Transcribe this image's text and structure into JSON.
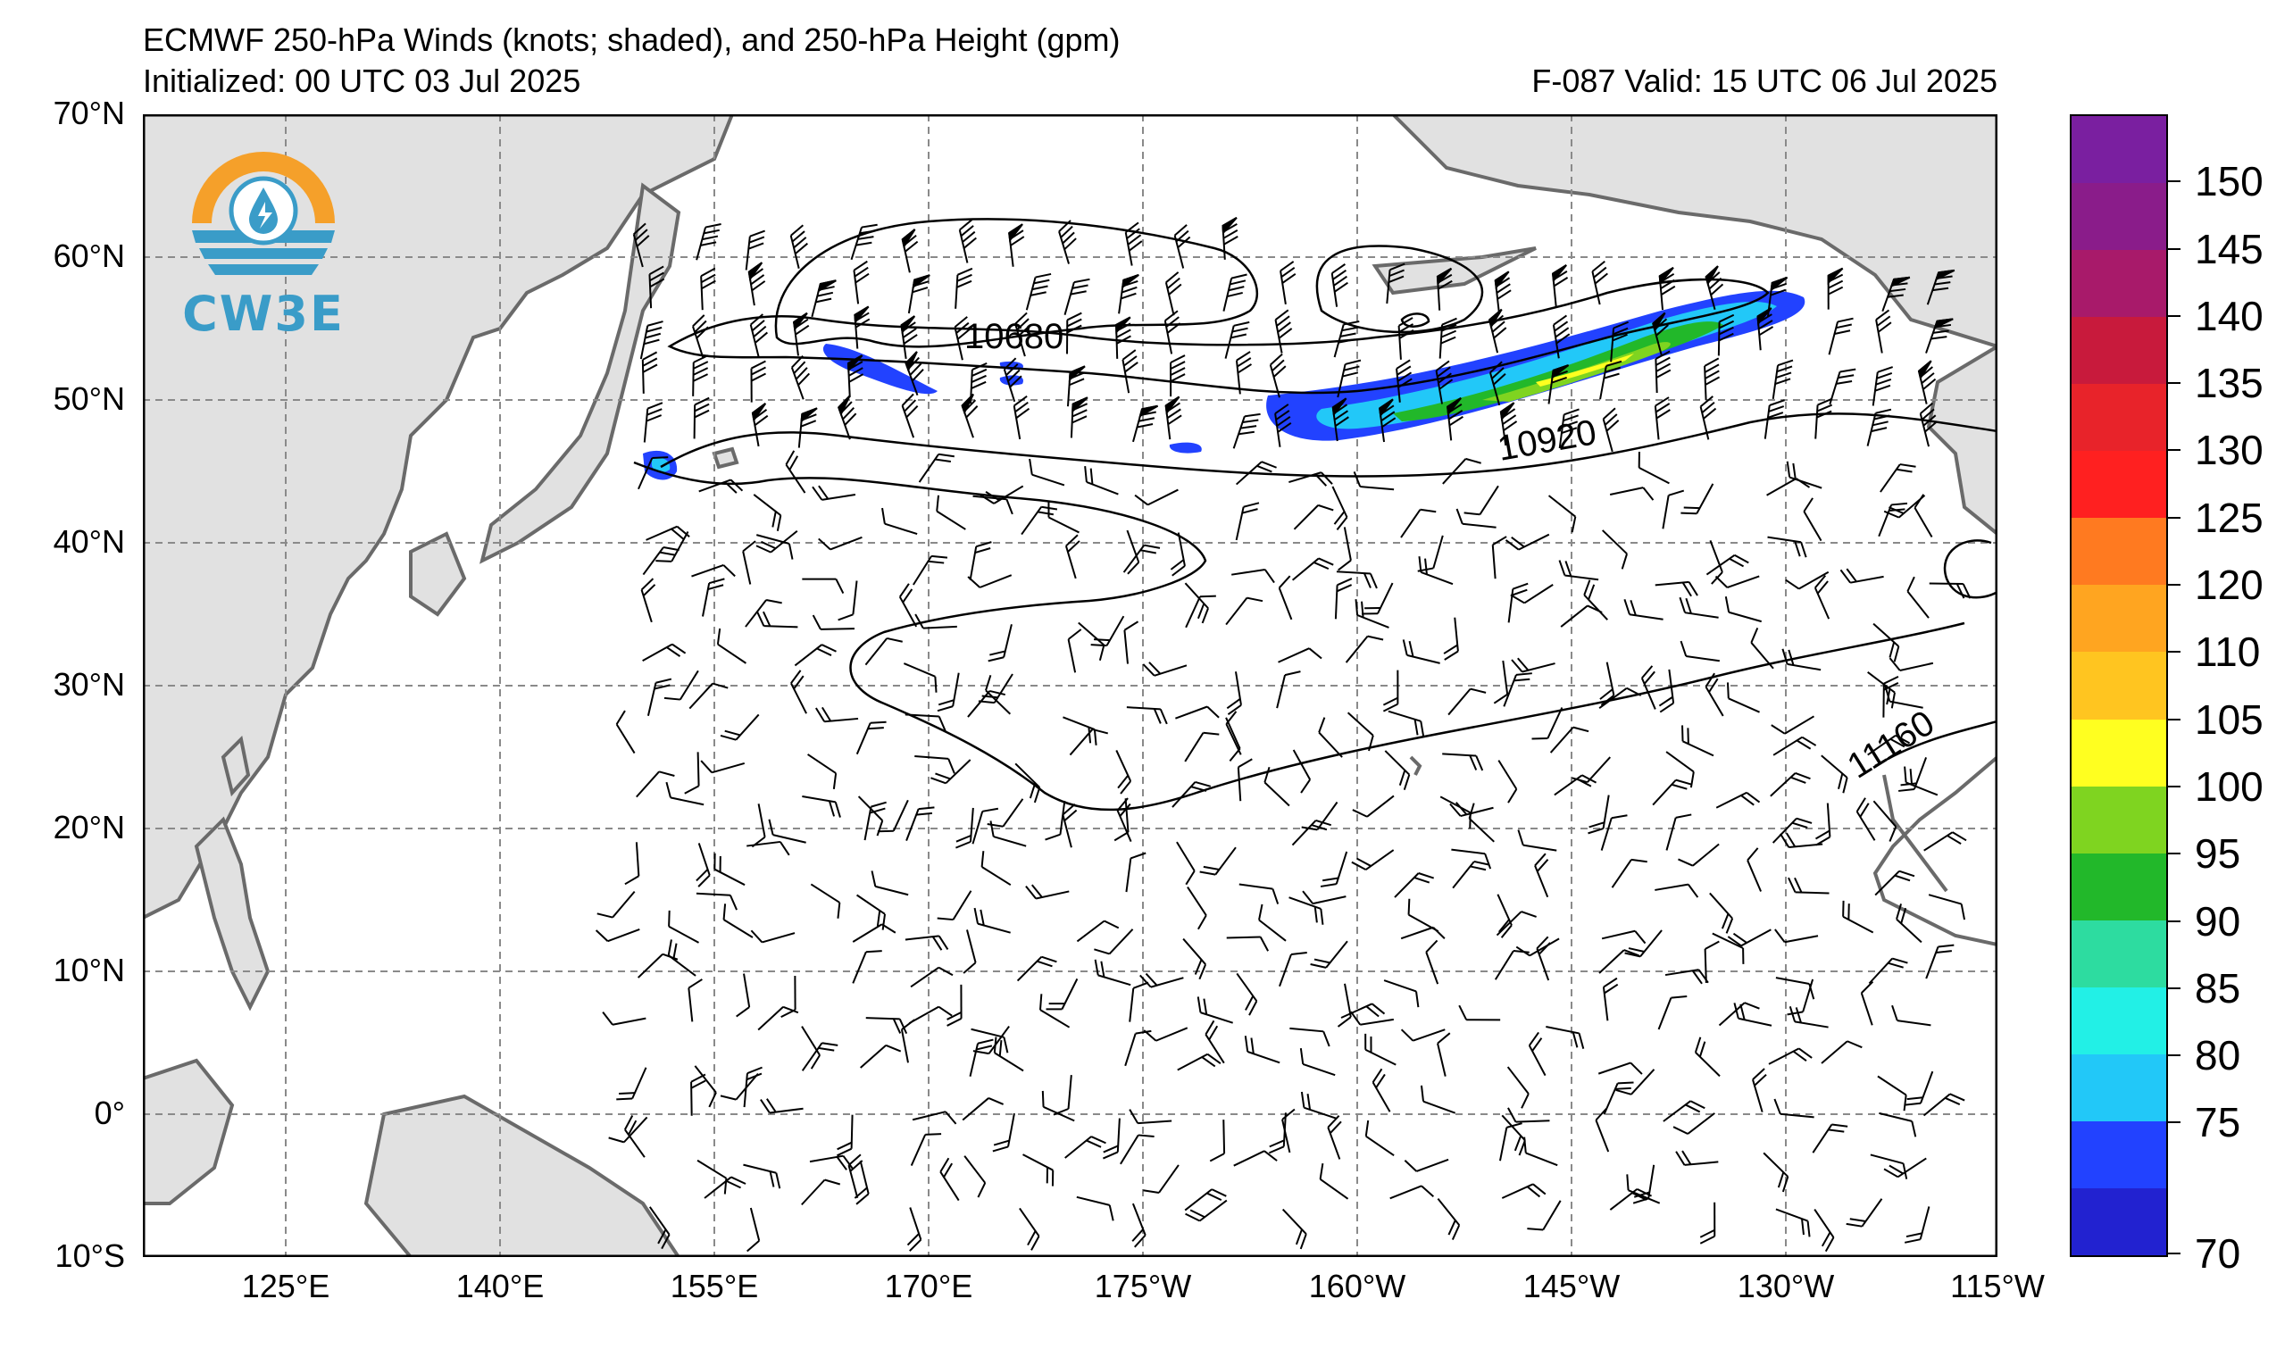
{
  "title": "ECMWF 250-hPa Winds (knots; shaded), and 250-hPa Height (gpm)",
  "initialized": "Initialized: 00 UTC 03 Jul 2025",
  "valid": "F-087  Valid: 15 UTC 06 Jul 2025",
  "logo": {
    "text": "CW3E"
  },
  "map": {
    "lat_labels": [
      "70°N",
      "60°N",
      "50°N",
      "40°N",
      "30°N",
      "20°N",
      "10°N",
      "0°",
      "10°S"
    ],
    "lon_labels": [
      "125°E",
      "140°E",
      "155°E",
      "170°E",
      "175°W",
      "160°W",
      "145°W",
      "130°W",
      "115°W"
    ],
    "contour_labels": [
      "10680",
      "10920",
      "11160"
    ]
  },
  "colorbar": {
    "labels": [
      "150",
      "145",
      "140",
      "135",
      "130",
      "125",
      "120",
      "110",
      "105",
      "100",
      "95",
      "90",
      "85",
      "80",
      "75",
      "70"
    ],
    "colors": [
      "#7a1fa0",
      "#8a1c8a",
      "#a81a6a",
      "#c81a3c",
      "#e8232a",
      "#ff2020",
      "#ff7a20",
      "#ffa520",
      "#ffc520",
      "#ffff20",
      "#7fd420",
      "#22b82a",
      "#2ddca0",
      "#22f0e6",
      "#22c8f8",
      "#2242ff",
      "#2222d0"
    ]
  }
}
